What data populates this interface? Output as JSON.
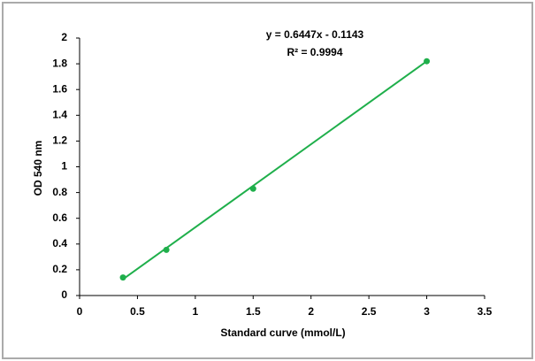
{
  "chart_data": {
    "type": "scatter",
    "x_label": "Standard curve (mmol/L)",
    "y_label": "OD 540 nm",
    "annotations": [
      "y = 0.6447x - 0.1143",
      "R² = 0.9994"
    ],
    "x": [
      0.375,
      0.75,
      1.5,
      3
    ],
    "values": [
      0.14,
      0.355,
      0.83,
      1.82
    ],
    "color": "#1faf4b",
    "trendline": {
      "x": [
        0.375,
        3
      ],
      "values": [
        0.127,
        1.82
      ]
    },
    "xlim": [
      0,
      3.5
    ],
    "xticks": [
      0,
      0.5,
      1,
      1.5,
      2,
      2.5,
      3,
      3.5
    ],
    "ylim": [
      0,
      2
    ],
    "yticks": [
      0,
      0.2,
      0.4,
      0.6,
      0.8,
      1,
      1.2,
      1.4,
      1.6,
      1.8,
      2
    ],
    "grid": false
  }
}
